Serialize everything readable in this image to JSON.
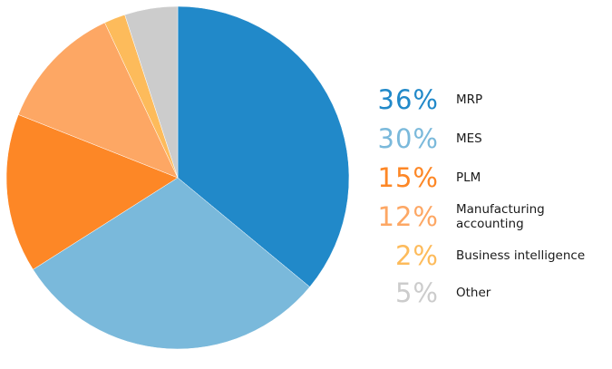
{
  "chart_data": {
    "type": "pie",
    "title": "",
    "legend_position": "right",
    "slices": [
      {
        "label": "MRP",
        "value": 36,
        "display": "36%",
        "color": "#2189c9"
      },
      {
        "label": "MES",
        "value": 30,
        "display": "30%",
        "color": "#7ab9db"
      },
      {
        "label": "PLM",
        "value": 15,
        "display": "15%",
        "color": "#fd8726"
      },
      {
        "label": "Manufacturing accounting",
        "value": 12,
        "display": "12%",
        "color": "#fda764"
      },
      {
        "label": "Business intelligence",
        "value": 2,
        "display": "2%",
        "color": "#fdbb5b"
      },
      {
        "label": "Other",
        "value": 5,
        "display": "5%",
        "color": "#cccccc"
      }
    ]
  }
}
